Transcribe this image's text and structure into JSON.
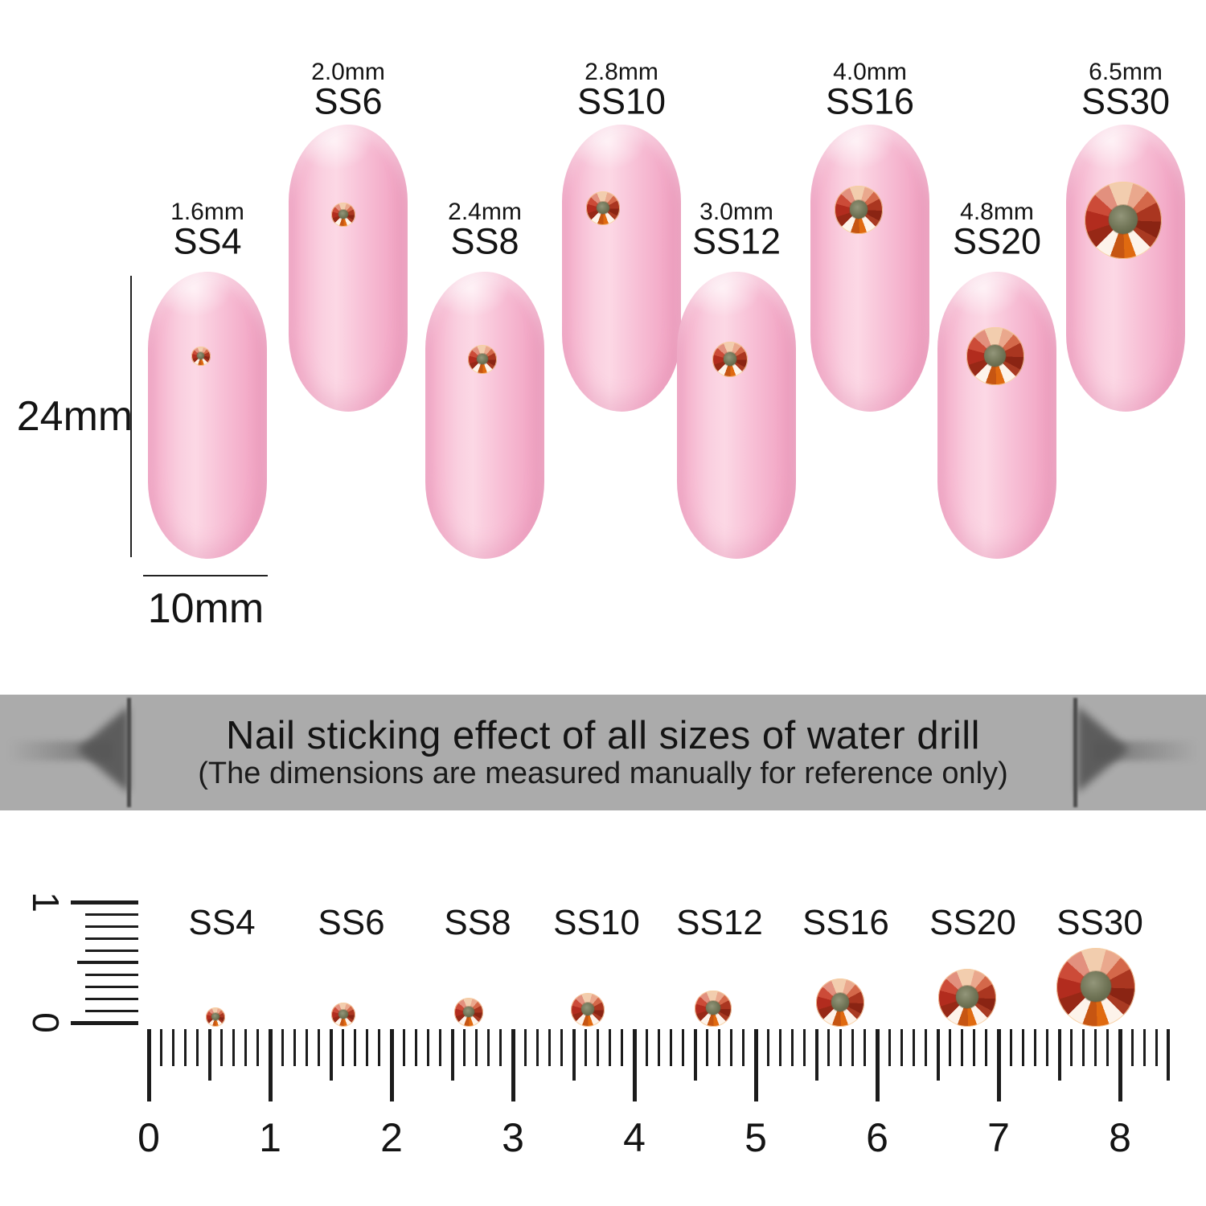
{
  "banner": {
    "title": "Nail sticking effect of all sizes of water drill",
    "subtitle": "(The dimensions are measured manually for reference only)",
    "bg_color": "#ababab",
    "text_color": "#141414"
  },
  "measurements": {
    "height_label": "24mm",
    "width_label": "10mm"
  },
  "sizes": [
    {
      "ss": "SS4",
      "mm_label": "1.6mm",
      "mm": 1.6
    },
    {
      "ss": "SS6",
      "mm_label": "2.0mm",
      "mm": 2.0
    },
    {
      "ss": "SS8",
      "mm_label": "2.4mm",
      "mm": 2.4
    },
    {
      "ss": "SS10",
      "mm_label": "2.8mm",
      "mm": 2.8
    },
    {
      "ss": "SS12",
      "mm_label": "3.0mm",
      "mm": 3.0
    },
    {
      "ss": "SS16",
      "mm_label": "4.0mm",
      "mm": 4.0
    },
    {
      "ss": "SS20",
      "mm_label": "4.8mm",
      "mm": 4.8
    },
    {
      "ss": "SS30",
      "mm_label": "6.5mm",
      "mm": 6.5
    }
  ],
  "ruler": {
    "numbers": [
      "0",
      "1",
      "2",
      "3",
      "4",
      "5",
      "6",
      "7",
      "8"
    ],
    "vertical_numbers": [
      "1",
      "0"
    ]
  },
  "colors": {
    "nail_pink": "#f8bcd4",
    "banner_gray": "#ababab",
    "stone_orange": "#e0670e",
    "stone_red": "#aa3620",
    "stone_center_olive": "#6f7355",
    "tick_black": "#1c1c1c"
  }
}
